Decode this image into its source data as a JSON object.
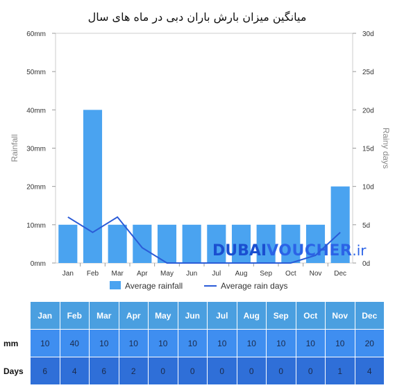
{
  "chart_data": {
    "type": "bar",
    "title": "میانگین میزان بارش باران دبی در ماه های سال",
    "categories": [
      "Jan",
      "Feb",
      "Mar",
      "Apr",
      "May",
      "Jun",
      "Jul",
      "Aug",
      "Sep",
      "Oct",
      "Nov",
      "Dec"
    ],
    "series": [
      {
        "name": "Average rainfall",
        "type": "bar",
        "axis": "left",
        "color": "#4aa3f0",
        "values": [
          10,
          40,
          10,
          10,
          10,
          10,
          10,
          10,
          10,
          10,
          10,
          20
        ]
      },
      {
        "name": "Average rain days",
        "type": "line",
        "axis": "right",
        "color": "#2a5bd7",
        "values": [
          6,
          4,
          6,
          2,
          0,
          0,
          0,
          0,
          0,
          0,
          1,
          4
        ]
      }
    ],
    "ylabel": "Rainfall",
    "y2label": "Rainy days",
    "ylim": [
      0,
      60
    ],
    "y2lim": [
      0,
      30
    ],
    "yticks": [
      "0mm",
      "10mm",
      "20mm",
      "30mm",
      "40mm",
      "50mm",
      "60mm"
    ],
    "y2ticks": [
      "0d",
      "5d",
      "10d",
      "15d",
      "20d",
      "25d",
      "30d"
    ],
    "grid": false,
    "legend": "bottom"
  },
  "watermark": {
    "part1": "DUBAI",
    "part2": "VOUCHER",
    "part3": ".ir"
  },
  "table": {
    "headers": [
      "Jan",
      "Feb",
      "Mar",
      "Apr",
      "May",
      "Jun",
      "Jul",
      "Aug",
      "Sep",
      "Oct",
      "Nov",
      "Dec"
    ],
    "rows": [
      {
        "label": "mm",
        "values": [
          "10",
          "40",
          "10",
          "10",
          "10",
          "10",
          "10",
          "10",
          "10",
          "10",
          "10",
          "20"
        ]
      },
      {
        "label": "Days",
        "values": [
          "6",
          "4",
          "6",
          "2",
          "0",
          "0",
          "0",
          "0",
          "0",
          "0",
          "1",
          "4"
        ]
      }
    ]
  }
}
